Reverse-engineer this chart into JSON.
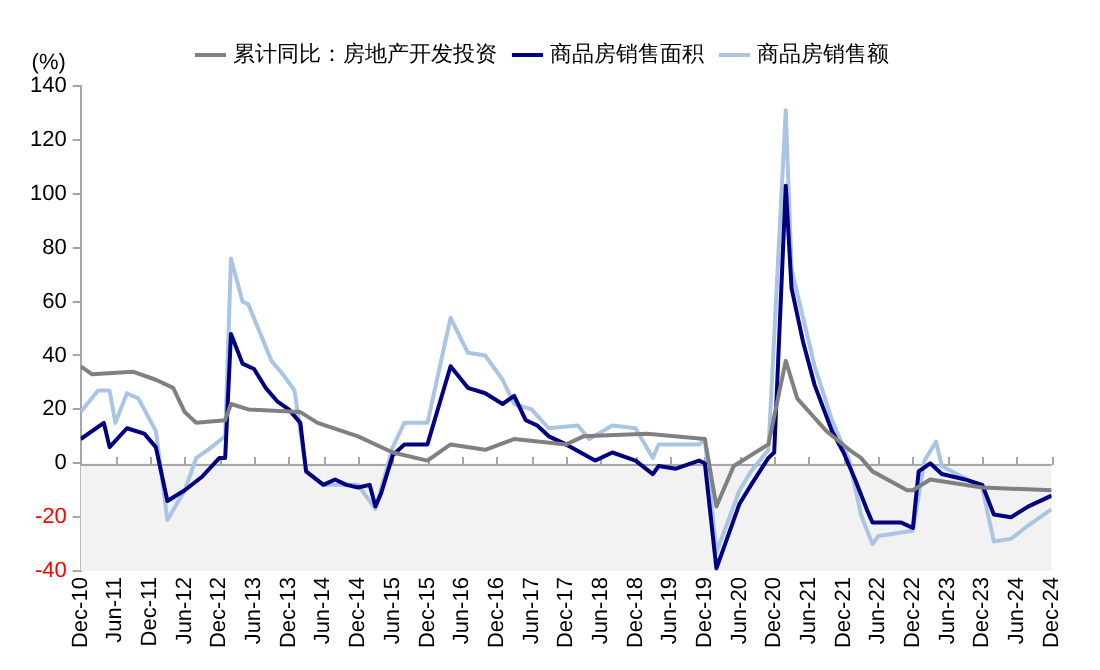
{
  "chart_data": {
    "type": "line",
    "ylabel": "(%)",
    "xlim": [
      "2010-12",
      "2024-12"
    ],
    "xticks": [
      {
        "value": "2010-12",
        "label": "Dec-10"
      },
      {
        "value": "2011-06",
        "label": "Jun-11"
      },
      {
        "value": "2011-12",
        "label": "Dec-11"
      },
      {
        "value": "2012-06",
        "label": "Jun-12"
      },
      {
        "value": "2012-12",
        "label": "Dec-12"
      },
      {
        "value": "2013-06",
        "label": "Jun-13"
      },
      {
        "value": "2013-12",
        "label": "Dec-13"
      },
      {
        "value": "2014-06",
        "label": "Jun-14"
      },
      {
        "value": "2014-12",
        "label": "Dec-14"
      },
      {
        "value": "2015-06",
        "label": "Jun-15"
      },
      {
        "value": "2015-12",
        "label": "Dec-15"
      },
      {
        "value": "2016-06",
        "label": "Jun-16"
      },
      {
        "value": "2016-12",
        "label": "Dec-16"
      },
      {
        "value": "2017-06",
        "label": "Jun-17"
      },
      {
        "value": "2017-12",
        "label": "Dec-17"
      },
      {
        "value": "2018-06",
        "label": "Jun-18"
      },
      {
        "value": "2018-12",
        "label": "Dec-18"
      },
      {
        "value": "2019-06",
        "label": "Jun-19"
      },
      {
        "value": "2019-12",
        "label": "Dec-19"
      },
      {
        "value": "2020-06",
        "label": "Jun-20"
      },
      {
        "value": "2020-12",
        "label": "Dec-20"
      },
      {
        "value": "2021-06",
        "label": "Jun-21"
      },
      {
        "value": "2021-12",
        "label": "Dec-21"
      },
      {
        "value": "2022-06",
        "label": "Jun-22"
      },
      {
        "value": "2022-12",
        "label": "Dec-22"
      },
      {
        "value": "2023-06",
        "label": "Jun-23"
      },
      {
        "value": "2023-12",
        "label": "Dec-23"
      },
      {
        "value": "2024-06",
        "label": "Jun-24"
      },
      {
        "value": "2024-12",
        "label": "Dec-24"
      }
    ],
    "ylim": [
      -40,
      140
    ],
    "yticks": [
      -40,
      -20,
      0,
      20,
      40,
      60,
      80,
      100,
      120,
      140
    ],
    "grid": false,
    "legend": "top",
    "marker": "none",
    "line_style": "solid",
    "bands": [
      {
        "axis": "y",
        "from": -40,
        "to": 0,
        "color": "#f2f2f2"
      }
    ],
    "ref_lines": [
      {
        "axis": "y",
        "value": 0,
        "color": "#a6a6a6"
      }
    ],
    "series": [
      {
        "name": "累计同比：房地产开发投资",
        "color": "#808080",
        "x": [
          "2010-12",
          "2011-02",
          "2011-09",
          "2012-01",
          "2012-04",
          "2012-06",
          "2012-08",
          "2013-01",
          "2013-02",
          "2013-05",
          "2014-02",
          "2014-05",
          "2014-12",
          "2015-06",
          "2015-12",
          "2016-04",
          "2016-10",
          "2017-03",
          "2017-12",
          "2018-03",
          "2019-02",
          "2019-12",
          "2020-02",
          "2020-05",
          "2020-11",
          "2021-02",
          "2021-04",
          "2021-09",
          "2022-01",
          "2022-03",
          "2022-05",
          "2022-11",
          "2022-12",
          "2023-03",
          "2023-12",
          "2024-12"
        ],
        "values": [
          36,
          33,
          34,
          31,
          28,
          19,
          15,
          16,
          22,
          20,
          19,
          15,
          10,
          4,
          1,
          7,
          5,
          9,
          7,
          10,
          11,
          9,
          -16,
          -1,
          7,
          38,
          24,
          12,
          5,
          2,
          -3,
          -10,
          -10,
          -6,
          -9,
          -10
        ]
      },
      {
        "name": "商品房销售面积",
        "color": "#000080",
        "x": [
          "2010-12",
          "2011-04",
          "2011-05",
          "2011-08",
          "2011-11",
          "2012-01",
          "2012-03",
          "2012-06",
          "2012-09",
          "2012-12",
          "2013-01",
          "2013-02",
          "2013-04",
          "2013-06",
          "2013-08",
          "2013-10",
          "2013-12",
          "2014-02",
          "2014-03",
          "2014-06",
          "2014-08",
          "2014-10",
          "2014-12",
          "2015-02",
          "2015-03",
          "2015-04",
          "2015-06",
          "2015-08",
          "2015-12",
          "2016-04",
          "2016-07",
          "2016-10",
          "2017-01",
          "2017-03",
          "2017-05",
          "2017-07",
          "2017-09",
          "2017-12",
          "2018-05",
          "2018-08",
          "2018-12",
          "2019-03",
          "2019-04",
          "2019-07",
          "2019-11",
          "2019-12",
          "2020-02",
          "2020-06",
          "2020-08",
          "2020-11",
          "2020-12",
          "2021-02",
          "2021-03",
          "2021-05",
          "2021-07",
          "2021-10",
          "2021-12",
          "2022-02",
          "2022-04",
          "2022-05",
          "2022-10",
          "2022-12",
          "2023-01",
          "2023-03",
          "2023-05",
          "2023-09",
          "2023-12",
          "2024-02",
          "2024-05",
          "2024-08",
          "2024-12"
        ],
        "values": [
          9,
          15,
          6,
          13,
          11,
          6,
          -14,
          -10,
          -5,
          2,
          2,
          48,
          37,
          35,
          28,
          23,
          20,
          15,
          -3,
          -8,
          -6,
          -8,
          -9,
          -8,
          -16,
          -11,
          3,
          7,
          7,
          36,
          28,
          26,
          22,
          25,
          16,
          14,
          10,
          7,
          1,
          4,
          1,
          -4,
          -1,
          -2,
          1,
          0,
          -39,
          -15,
          -8,
          2,
          4,
          103,
          65,
          45,
          29,
          12,
          4,
          -6,
          -17,
          -22,
          -22,
          -24,
          -3,
          0,
          -4,
          -6,
          -8,
          -19,
          -20,
          -16,
          -12
        ]
      },
      {
        "name": "商品房销售额",
        "color": "#aac4e4",
        "x": [
          "2010-12",
          "2011-03",
          "2011-05",
          "2011-06",
          "2011-08",
          "2011-10",
          "2012-01",
          "2012-03",
          "2012-06",
          "2012-08",
          "2012-10",
          "2013-01",
          "2013-02",
          "2013-04",
          "2013-05",
          "2013-09",
          "2013-11",
          "2014-01",
          "2014-03",
          "2014-06",
          "2014-12",
          "2015-03",
          "2015-06",
          "2015-08",
          "2015-12",
          "2016-04",
          "2016-07",
          "2016-10",
          "2017-01",
          "2017-03",
          "2017-06",
          "2017-09",
          "2018-02",
          "2018-04",
          "2018-08",
          "2018-12",
          "2019-03",
          "2019-04",
          "2019-11",
          "2019-12",
          "2020-02",
          "2020-06",
          "2020-08",
          "2020-11",
          "2021-02",
          "2021-03",
          "2021-05",
          "2021-07",
          "2021-10",
          "2022-01",
          "2022-03",
          "2022-05",
          "2022-06",
          "2022-12",
          "2023-02",
          "2023-04",
          "2023-05",
          "2023-12",
          "2024-02",
          "2024-05",
          "2024-08",
          "2024-12"
        ],
        "values": [
          19,
          27,
          27,
          15,
          26,
          24,
          12,
          -21,
          -10,
          2,
          5,
          10,
          76,
          60,
          59,
          38,
          33,
          27,
          -3,
          -8,
          -8,
          -17,
          6,
          15,
          15,
          54,
          41,
          40,
          31,
          22,
          20,
          13,
          14,
          9,
          14,
          13,
          2,
          7,
          7,
          9,
          -33,
          -10,
          -3,
          5,
          131,
          72,
          54,
          36,
          16,
          1,
          -19,
          -30,
          -27,
          -25,
          1,
          8,
          -1,
          -9,
          -29,
          -28,
          -23,
          -17
        ]
      }
    ]
  }
}
